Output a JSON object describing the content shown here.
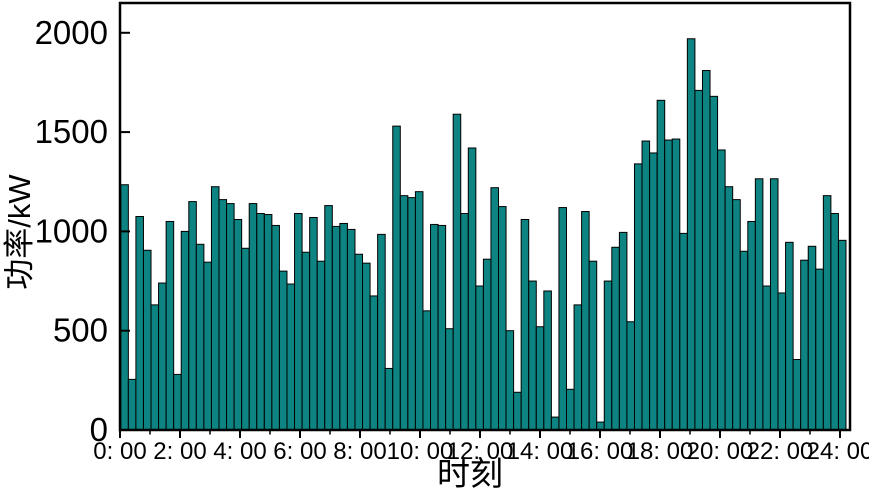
{
  "chart_data": {
    "type": "bar",
    "title": "",
    "xlabel": "时刻",
    "ylabel": "功率/kW",
    "bar_interval_minutes": 15,
    "x_start_hour": 0,
    "x_end_hour": 24,
    "xlim_hours": [
      0,
      24.35
    ],
    "ylim": [
      0,
      2150
    ],
    "grid": false,
    "legend_position": "none",
    "bar_color": "#0d8482",
    "bar_edge_color": "#000000",
    "axis_color": "#000000",
    "x_tick_labels": [
      "0: 00",
      "2: 00",
      "4: 00",
      "6: 00",
      "8: 00",
      "10: 00",
      "12: 00",
      "14: 00",
      "16: 00",
      "18: 00",
      "20: 00",
      "22: 00",
      "24: 00"
    ],
    "x_major_tick_every_hours": 2,
    "x_minor_tick_every_hours": 1,
    "y_tick_labels": [
      "0",
      "500",
      "1000",
      "1500",
      "2000"
    ],
    "y_tick_values": [
      0,
      500,
      1000,
      1500,
      2000
    ],
    "values": [
      1235,
      255,
      1075,
      905,
      630,
      740,
      1050,
      280,
      1000,
      1150,
      935,
      845,
      1225,
      1160,
      1140,
      1060,
      915,
      1140,
      1090,
      1085,
      1030,
      800,
      735,
      1090,
      895,
      1070,
      850,
      1130,
      1025,
      1040,
      1010,
      885,
      840,
      675,
      985,
      310,
      1530,
      1180,
      1170,
      1200,
      600,
      1035,
      1030,
      510,
      1590,
      1090,
      1420,
      725,
      860,
      1220,
      1125,
      500,
      190,
      1060,
      750,
      520,
      700,
      65,
      1120,
      205,
      630,
      1100,
      850,
      40,
      750,
      920,
      995,
      545,
      1340,
      1455,
      1395,
      1660,
      1460,
      1465,
      990,
      1970,
      1710,
      1810,
      1680,
      1410,
      1225,
      1160,
      900,
      1050,
      1265,
      725,
      1265,
      690,
      945,
      355,
      855,
      925,
      810,
      1180,
      1090,
      955
    ]
  }
}
